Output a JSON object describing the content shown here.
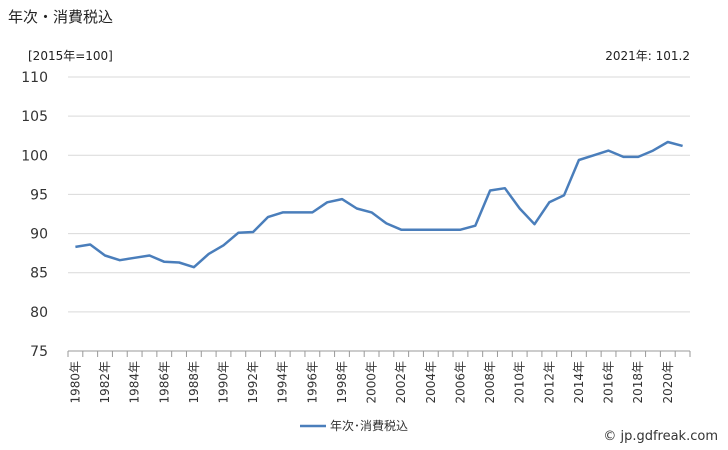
{
  "header": {
    "title": "年次・消費税込",
    "unit": "[2015年=100]",
    "latest": "2021年: 101.2"
  },
  "footer": {
    "credit": "© jp.gdfreak.com"
  },
  "colors": {
    "series": "#4a7ebb",
    "grid": "#d9d9d9",
    "axis": "#999999"
  },
  "chart_data": {
    "type": "line",
    "title": "",
    "ylim": [
      75,
      110
    ],
    "yticks": [
      75,
      80,
      85,
      90,
      95,
      100,
      105,
      110
    ],
    "x": [
      1980,
      1981,
      1982,
      1983,
      1984,
      1985,
      1986,
      1987,
      1988,
      1989,
      1990,
      1991,
      1992,
      1993,
      1994,
      1995,
      1996,
      1997,
      1998,
      1999,
      2000,
      2001,
      2002,
      2003,
      2004,
      2005,
      2006,
      2007,
      2008,
      2009,
      2010,
      2011,
      2012,
      2013,
      2014,
      2015,
      2016,
      2017,
      2018,
      2019,
      2020,
      2021
    ],
    "xtick_labels": [
      "1980年",
      "1982年",
      "1984年",
      "1986年",
      "1988年",
      "1990年",
      "1992年",
      "1994年",
      "1996年",
      "1998年",
      "2000年",
      "2002年",
      "2004年",
      "2006年",
      "2008年",
      "2010年",
      "2012年",
      "2014年",
      "2016年",
      "2018年",
      "2020年"
    ],
    "series": [
      {
        "name": "年次･消費税込",
        "values": [
          88.3,
          88.6,
          87.2,
          86.6,
          86.9,
          87.2,
          86.4,
          86.3,
          85.7,
          87.4,
          88.5,
          90.1,
          90.2,
          92.1,
          92.7,
          92.7,
          92.7,
          94.0,
          94.4,
          93.2,
          92.7,
          91.3,
          90.5,
          90.5,
          90.5,
          90.5,
          90.5,
          91.0,
          95.5,
          95.8,
          93.2,
          91.2,
          94.0,
          94.9,
          99.4,
          100.0,
          100.6,
          99.8,
          99.8,
          100.6,
          101.7,
          101.2
        ]
      }
    ],
    "legend_position": "bottom",
    "grid": true
  }
}
